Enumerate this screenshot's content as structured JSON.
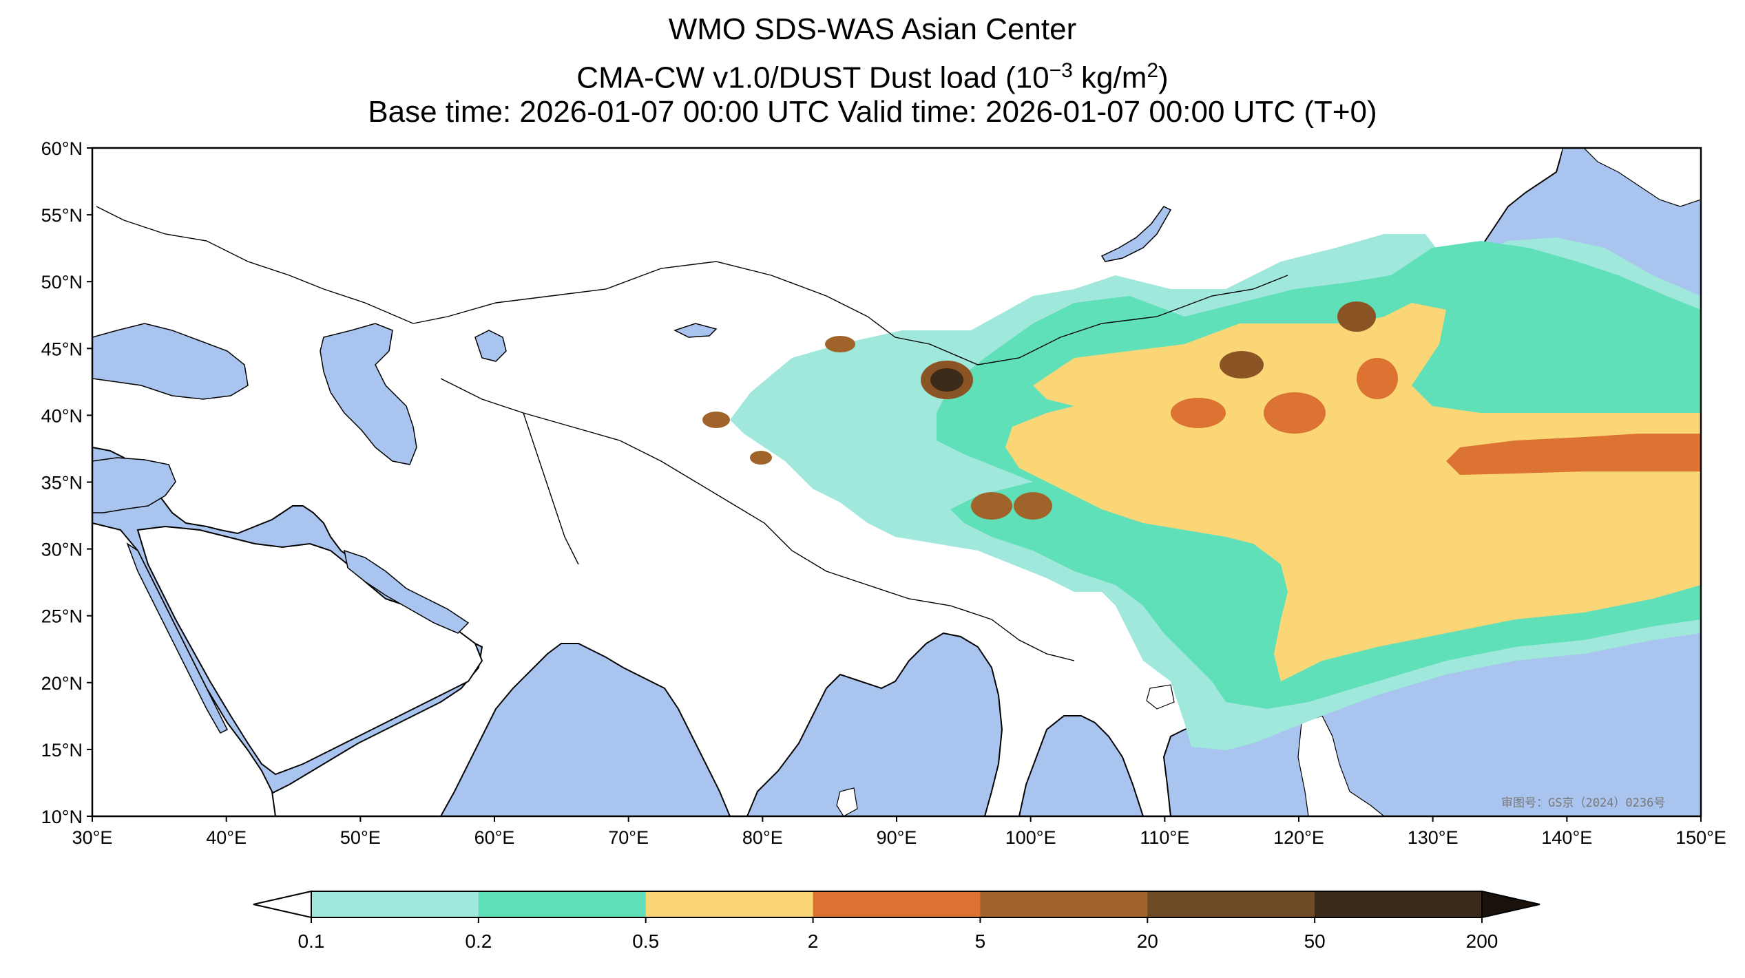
{
  "titles": {
    "line1": "WMO SDS-WAS Asian Center",
    "line2_prefix": "CMA-CW v1.0/DUST Dust load (10",
    "line2_exp": "−3",
    "line2_mid": " kg/m",
    "line2_exp2": "2",
    "line2_suffix": ")",
    "line3": "Base time: 2026-01-07 00:00 UTC Valid time: 2026-01-07 00:00 UTC (T+0)"
  },
  "map": {
    "lon_ticks": [
      "30°E",
      "40°E",
      "50°E",
      "60°E",
      "70°E",
      "80°E",
      "90°E",
      "100°E",
      "110°E",
      "120°E",
      "130°E",
      "140°E",
      "150°E"
    ],
    "lat_ticks": [
      "10°N",
      "15°N",
      "20°N",
      "25°N",
      "30°N",
      "35°N",
      "40°N",
      "45°N",
      "50°N",
      "55°N",
      "60°N"
    ],
    "lon_range": [
      30,
      150
    ],
    "lat_range": [
      10,
      60
    ],
    "approval_text": "审图号：GS京（2024）0236号",
    "colors": {
      "ocean": "#a9c4ee",
      "land": "#ffffff",
      "border": "#000000",
      "river": "#a9c4ee"
    }
  },
  "colorbar": {
    "levels": [
      "0.1",
      "0.2",
      "0.5",
      "2",
      "5",
      "20",
      "50",
      "200"
    ],
    "colors": [
      "#a0e8dc",
      "#5fe0b8",
      "#fad676",
      "#dc7332",
      "#a0632a",
      "#6e4a26",
      "#3c2a1a"
    ],
    "under_color": "#ffffff",
    "over_color": "#1a120a",
    "extend": "both"
  }
}
